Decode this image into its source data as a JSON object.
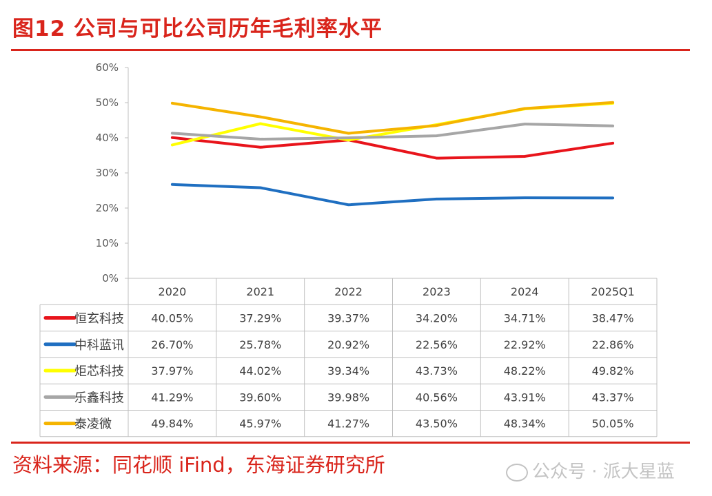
{
  "title": "图12  公司与可比公司历年毛利率水平",
  "source": "资料来源：同花顺 iFind，东海证券研究所",
  "watermark": "公众号 · 派大星蓝",
  "chart_data": {
    "type": "line",
    "categories": [
      "2020",
      "2021",
      "2022",
      "2023",
      "2024",
      "2025Q1"
    ],
    "ylim": [
      0,
      60
    ],
    "y_ticks": [
      "0%",
      "10%",
      "20%",
      "30%",
      "40%",
      "50%",
      "60%"
    ],
    "y_tick_values": [
      0,
      10,
      20,
      30,
      40,
      50,
      60
    ],
    "grid": false,
    "legend": "data-table-left",
    "series": [
      {
        "name": "恒玄科技",
        "color": "#e8141b",
        "values": [
          40.05,
          37.29,
          39.37,
          34.2,
          34.71,
          38.47
        ],
        "labels": [
          "40.05%",
          "37.29%",
          "39.37%",
          "34.20%",
          "34.71%",
          "38.47%"
        ]
      },
      {
        "name": "中科蓝讯",
        "color": "#1f6fc1",
        "values": [
          26.7,
          25.78,
          20.92,
          22.56,
          22.92,
          22.86
        ],
        "labels": [
          "26.70%",
          "25.78%",
          "20.92%",
          "22.56%",
          "22.92%",
          "22.86%"
        ]
      },
      {
        "name": "炬芯科技",
        "color": "#ffff00",
        "values": [
          37.97,
          44.02,
          39.34,
          43.73,
          48.22,
          49.82
        ],
        "labels": [
          "37.97%",
          "44.02%",
          "39.34%",
          "43.73%",
          "48.22%",
          "49.82%"
        ]
      },
      {
        "name": "乐鑫科技",
        "color": "#a6a6a6",
        "values": [
          41.29,
          39.6,
          39.98,
          40.56,
          43.91,
          43.37
        ],
        "labels": [
          "41.29%",
          "39.60%",
          "39.98%",
          "40.56%",
          "43.91%",
          "43.37%"
        ]
      },
      {
        "name": "泰凌微",
        "color": "#f5b400",
        "values": [
          49.84,
          45.97,
          41.27,
          43.5,
          48.34,
          50.05
        ],
        "labels": [
          "49.84%",
          "45.97%",
          "41.27%",
          "43.50%",
          "48.34%",
          "50.05%"
        ]
      }
    ]
  }
}
